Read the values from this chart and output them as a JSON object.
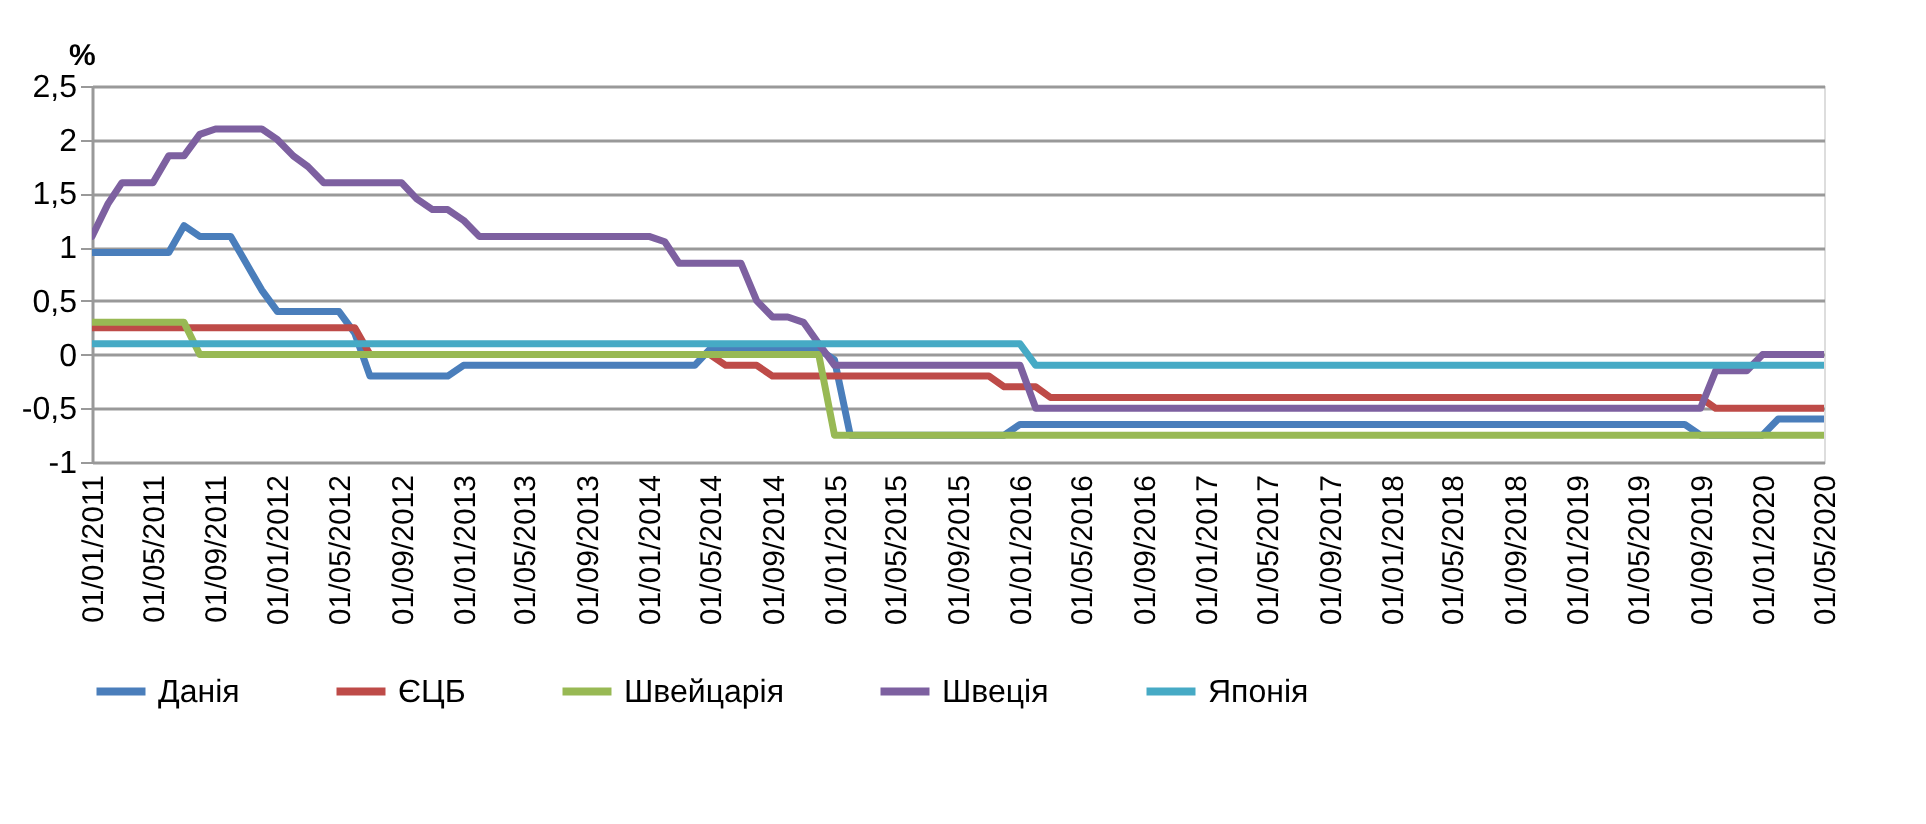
{
  "chart_data": {
    "type": "line",
    "ylabel": "%",
    "xlim": [
      "2011-01-01",
      "2020-05-01"
    ],
    "xticks": [
      {
        "value": "2011-01-01",
        "label": "01/01/2011"
      },
      {
        "value": "2011-05-01",
        "label": "01/05/2011"
      },
      {
        "value": "2011-09-01",
        "label": "01/09/2011"
      },
      {
        "value": "2012-01-01",
        "label": "01/01/2012"
      },
      {
        "value": "2012-05-01",
        "label": "01/05/2012"
      },
      {
        "value": "2012-09-01",
        "label": "01/09/2012"
      },
      {
        "value": "2013-01-01",
        "label": "01/01/2013"
      },
      {
        "value": "2013-05-01",
        "label": "01/05/2013"
      },
      {
        "value": "2013-09-01",
        "label": "01/09/2013"
      },
      {
        "value": "2014-01-01",
        "label": "01/01/2014"
      },
      {
        "value": "2014-05-01",
        "label": "01/05/2014"
      },
      {
        "value": "2014-09-01",
        "label": "01/09/2014"
      },
      {
        "value": "2015-01-01",
        "label": "01/01/2015"
      },
      {
        "value": "2015-05-01",
        "label": "01/05/2015"
      },
      {
        "value": "2015-09-01",
        "label": "01/09/2015"
      },
      {
        "value": "2016-01-01",
        "label": "01/01/2016"
      },
      {
        "value": "2016-05-01",
        "label": "01/05/2016"
      },
      {
        "value": "2016-09-01",
        "label": "01/09/2016"
      },
      {
        "value": "2017-01-01",
        "label": "01/01/2017"
      },
      {
        "value": "2017-05-01",
        "label": "01/05/2017"
      },
      {
        "value": "2017-09-01",
        "label": "01/09/2017"
      },
      {
        "value": "2018-01-01",
        "label": "01/01/2018"
      },
      {
        "value": "2018-05-01",
        "label": "01/05/2018"
      },
      {
        "value": "2018-09-01",
        "label": "01/09/2018"
      },
      {
        "value": "2019-01-01",
        "label": "01/01/2019"
      },
      {
        "value": "2019-05-01",
        "label": "01/05/2019"
      },
      {
        "value": "2019-09-01",
        "label": "01/09/2019"
      },
      {
        "value": "2020-01-01",
        "label": "01/01/2020"
      },
      {
        "value": "2020-05-01",
        "label": "01/05/2020"
      }
    ],
    "ylim": [
      -1,
      2.5
    ],
    "yticks": [
      {
        "value": -1,
        "label": "-1"
      },
      {
        "value": -0.5,
        "label": "-0,5"
      },
      {
        "value": 0,
        "label": "0"
      },
      {
        "value": 0.5,
        "label": "0,5"
      },
      {
        "value": 1,
        "label": "1"
      },
      {
        "value": 1.5,
        "label": "1,5"
      },
      {
        "value": 2,
        "label": "2"
      },
      {
        "value": 2.5,
        "label": "2,5"
      }
    ],
    "grid": "y",
    "legend": "bottom",
    "marker": "none",
    "line_style": "solid",
    "series": [
      {
        "name": "Данія",
        "color": "#4a7ebb",
        "x": [
          "2011-01",
          "2011-06",
          "2011-07",
          "2011-08",
          "2011-10",
          "2011-12",
          "2012-01",
          "2012-05",
          "2012-06",
          "2012-07",
          "2012-12",
          "2013-01",
          "2014-04",
          "2014-05",
          "2014-12",
          "2015-01",
          "2015-02",
          "2015-12",
          "2016-01",
          "2019-08",
          "2019-09",
          "2020-01",
          "2020-02",
          "2020-05"
        ],
        "values": [
          0.95,
          0.95,
          1.2,
          1.1,
          1.1,
          0.6,
          0.4,
          0.4,
          0.2,
          -0.2,
          -0.2,
          -0.1,
          -0.1,
          0.05,
          0.05,
          -0.05,
          -0.75,
          -0.75,
          -0.65,
          -0.65,
          -0.75,
          -0.75,
          -0.6,
          -0.6
        ]
      },
      {
        "name": "ЄЦБ",
        "color": "#be4b48",
        "x": [
          "2011-01",
          "2012-06",
          "2012-07",
          "2014-05",
          "2014-06",
          "2014-08",
          "2014-09",
          "2015-11",
          "2015-12",
          "2016-02",
          "2016-03",
          "2019-09",
          "2019-10",
          "2020-05"
        ],
        "values": [
          0.25,
          0.25,
          0,
          0,
          -0.1,
          -0.1,
          -0.2,
          -0.2,
          -0.3,
          -0.3,
          -0.4,
          -0.4,
          -0.5,
          -0.5
        ]
      },
      {
        "name": "Швейцарія",
        "color": "#98b954",
        "x": [
          "2011-01",
          "2011-07",
          "2011-08",
          "2014-12",
          "2015-01",
          "2020-05"
        ],
        "values": [
          0.3,
          0.3,
          0,
          0,
          -0.75,
          -0.75
        ]
      },
      {
        "name": "Швеція",
        "color": "#7d60a0",
        "x": [
          "2011-01",
          "2011-02",
          "2011-03",
          "2011-05",
          "2011-06",
          "2011-07",
          "2011-08",
          "2011-09",
          "2011-12",
          "2012-01",
          "2012-02",
          "2012-03",
          "2012-04",
          "2012-09",
          "2012-10",
          "2012-11",
          "2012-12",
          "2013-01",
          "2013-02",
          "2014-01",
          "2014-02",
          "2014-03",
          "2014-07",
          "2014-08",
          "2014-09",
          "2014-10",
          "2014-11",
          "2014-12",
          "2015-01",
          "2016-01",
          "2016-02",
          "2019-09",
          "2019-10",
          "2019-12",
          "2020-01",
          "2020-05"
        ],
        "values": [
          1.1,
          1.4,
          1.6,
          1.6,
          1.85,
          1.85,
          2.05,
          2.1,
          2.1,
          2.0,
          1.85,
          1.75,
          1.6,
          1.6,
          1.45,
          1.35,
          1.35,
          1.25,
          1.1,
          1.1,
          1.05,
          0.85,
          0.85,
          0.5,
          0.35,
          0.35,
          0.3,
          0.1,
          -0.1,
          -0.1,
          -0.5,
          -0.5,
          -0.15,
          -0.15,
          0,
          0
        ]
      },
      {
        "name": "Японія",
        "color": "#46aac5",
        "x": [
          "2011-01",
          "2016-01",
          "2016-02",
          "2020-05"
        ],
        "values": [
          0.1,
          0.1,
          -0.1,
          -0.1
        ]
      }
    ]
  }
}
